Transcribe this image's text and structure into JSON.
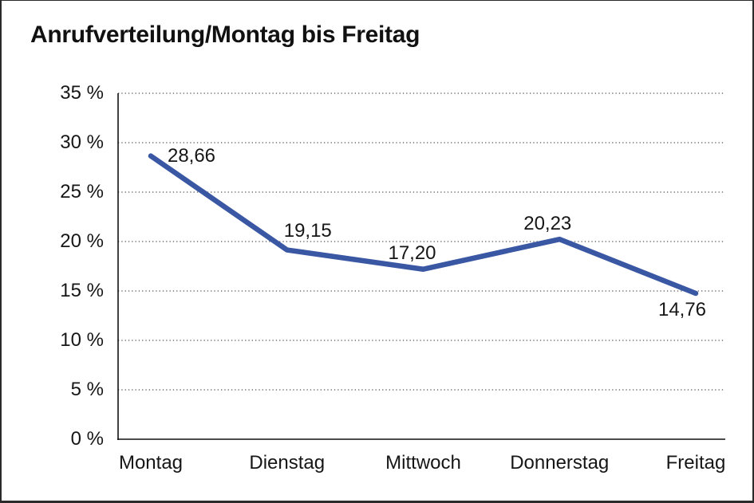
{
  "chart_data": {
    "type": "line",
    "title": "Anrufverteilung/Montag bis Freitag",
    "categories": [
      "Montag",
      "Dienstag",
      "Mittwoch",
      "Donnerstag",
      "Freitag"
    ],
    "series": [
      {
        "name": "Anrufverteilung",
        "values": [
          28.66,
          19.15,
          17.2,
          20.23,
          14.76
        ]
      }
    ],
    "value_labels": [
      "28,66",
      "19,15",
      "17,20",
      "20,23",
      "14,76"
    ],
    "y_tick_values": [
      0,
      5,
      10,
      15,
      20,
      25,
      30,
      35
    ],
    "y_tick_labels": [
      "0 %",
      "5 %",
      "10 %",
      "15 %",
      "20 %",
      "25 %",
      "30 %",
      "35 %"
    ],
    "ylim": [
      0,
      35
    ],
    "xlabel": "",
    "ylabel": "",
    "legend": "none",
    "grid": "horizontal-dotted",
    "line_color": "#3a57a4",
    "axis_color": "#111111",
    "grid_color": "#555555",
    "text_color": "#161616"
  }
}
